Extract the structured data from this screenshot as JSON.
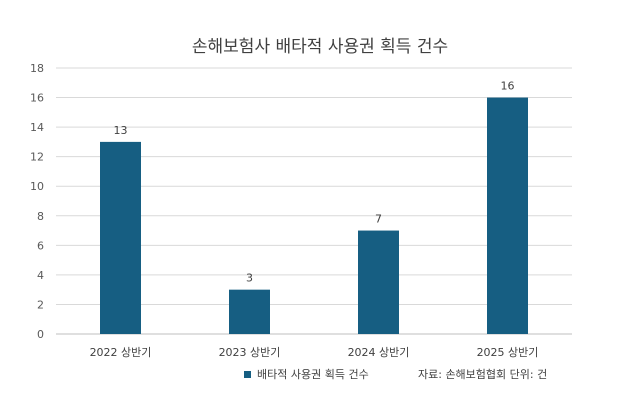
{
  "chart_data": {
    "type": "bar",
    "title": "손해보험사 배타적 사용권 획득 건수",
    "categories": [
      "2022 상반기",
      "2023 상반기",
      "2024 상반기",
      "2025 상반기"
    ],
    "series": [
      {
        "name": "배타적 사용권 획득 건수",
        "values": [
          13,
          3,
          7,
          16
        ],
        "color": "#165e82"
      }
    ],
    "ylim": [
      0,
      18
    ],
    "yticks": [
      0,
      2,
      4,
      6,
      8,
      10,
      12,
      14,
      16,
      18
    ],
    "grid": true,
    "legend": "bottom",
    "source_note": "자료: 손해보험협회 단위: 건"
  }
}
